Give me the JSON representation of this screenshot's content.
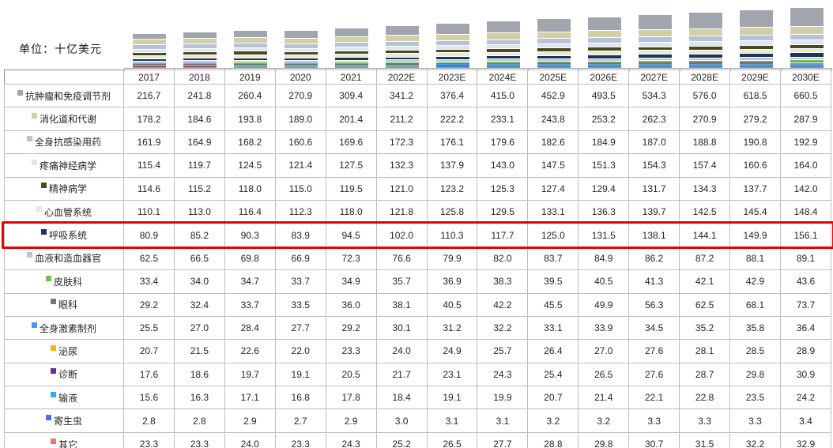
{
  "unit_label": "单位：十亿美元",
  "highlight": {
    "series": "呼吸系统",
    "series_index": 6,
    "color": "#e60000"
  },
  "chart_data": {
    "type": "bar",
    "stacked": true,
    "title": "",
    "unit": "十亿美元",
    "grid": false,
    "legend_position": "table-rows",
    "categories": [
      "2017",
      "2018",
      "2019",
      "2020",
      "2021",
      "2022E",
      "2023E",
      "2024E",
      "2025E",
      "2026E",
      "2027E",
      "2028E",
      "2029E",
      "2030E"
    ],
    "series": [
      {
        "name": "抗肿瘤和免疫调节剂",
        "color": "#a1a5ae",
        "values": [
          216.7,
          241.8,
          260.4,
          270.9,
          309.4,
          341.2,
          376.4,
          415.0,
          452.9,
          493.5,
          534.3,
          576.0,
          618.5,
          660.5
        ]
      },
      {
        "name": "消化道和代谢",
        "color": "#d2cea6",
        "values": [
          178.2,
          184.6,
          193.8,
          189.0,
          201.4,
          211.2,
          222.2,
          233.1,
          243.8,
          253.2,
          262.3,
          270.9,
          279.2,
          287.9
        ]
      },
      {
        "name": "全身抗感染用药",
        "color": "#b6c3d6",
        "values": [
          161.9,
          164.9,
          168.2,
          160.6,
          169.6,
          172.3,
          176.1,
          179.6,
          182.6,
          184.9,
          187.0,
          188.8,
          190.8,
          192.9
        ]
      },
      {
        "name": "疼痛神经病学",
        "color": "#dde6f0",
        "values": [
          115.4,
          119.7,
          124.5,
          121.4,
          127.5,
          132.3,
          137.9,
          143.0,
          147.5,
          151.3,
          154.3,
          157.4,
          160.6,
          164.0
        ]
      },
      {
        "name": "精神病学",
        "color": "#4a4a21",
        "values": [
          114.6,
          115.2,
          118.0,
          115.0,
          119.5,
          121.0,
          123.2,
          125.3,
          127.4,
          129.4,
          131.7,
          134.3,
          137.7,
          142.0
        ]
      },
      {
        "name": "心血管系统",
        "color": "#e9e9d8",
        "values": [
          110.1,
          113.0,
          116.4,
          112.3,
          118.0,
          121.8,
          125.8,
          129.5,
          133.1,
          136.3,
          139.7,
          142.5,
          145.4,
          148.4
        ]
      },
      {
        "name": "呼吸系统",
        "color": "#203452",
        "values": [
          80.9,
          85.2,
          90.3,
          83.9,
          94.5,
          102.0,
          110.3,
          117.7,
          125.0,
          131.5,
          138.1,
          144.1,
          149.9,
          156.1
        ]
      },
      {
        "name": "血液和造血器官",
        "color": "#afc9e1",
        "values": [
          62.5,
          66.5,
          69.8,
          66.9,
          72.3,
          76.6,
          79.9,
          82.0,
          83.7,
          84.9,
          86.2,
          87.2,
          88.1,
          89.1
        ]
      },
      {
        "name": "皮肤科",
        "color": "#74c04e",
        "values": [
          33.4,
          34.0,
          34.7,
          33.7,
          34.9,
          35.7,
          36.9,
          38.3,
          39.5,
          40.5,
          41.3,
          42.1,
          42.9,
          43.6
        ]
      },
      {
        "name": "眼科",
        "color": "#747474",
        "values": [
          29.2,
          32.4,
          33.7,
          33.5,
          36.0,
          38.1,
          40.5,
          42.2,
          45.5,
          49.9,
          56.3,
          62.5,
          68.1,
          73.7
        ]
      },
      {
        "name": "全身激素制剂",
        "color": "#4f96e8",
        "values": [
          25.5,
          27.0,
          28.4,
          27.7,
          29.2,
          30.1,
          31.2,
          32.2,
          33.1,
          33.9,
          34.5,
          35.2,
          35.8,
          36.4
        ]
      },
      {
        "name": "泌尿",
        "color": "#f2b705",
        "values": [
          20.7,
          21.5,
          22.6,
          22.0,
          23.3,
          24.0,
          24.9,
          25.7,
          26.4,
          27.0,
          27.6,
          28.1,
          28.5,
          28.9
        ]
      },
      {
        "name": "诊断",
        "color": "#6c2e91",
        "values": [
          17.6,
          18.6,
          19.7,
          19.1,
          20.5,
          21.7,
          23.1,
          24.3,
          25.4,
          26.5,
          27.6,
          28.7,
          29.8,
          30.9
        ]
      },
      {
        "name": "输液",
        "color": "#2bb4e8",
        "values": [
          15.6,
          16.3,
          17.1,
          16.8,
          17.8,
          18.4,
          19.1,
          19.9,
          20.7,
          21.4,
          22.1,
          22.8,
          23.5,
          24.2
        ]
      },
      {
        "name": "寄生虫",
        "color": "#4e6cea",
        "values": [
          2.8,
          2.8,
          2.9,
          2.7,
          2.9,
          3.0,
          3.1,
          3.1,
          3.2,
          3.2,
          3.3,
          3.3,
          3.3,
          3.4
        ]
      },
      {
        "name": "其它",
        "color": "#f87070",
        "values": [
          23.3,
          23.3,
          24.0,
          23.3,
          24.3,
          25.2,
          26.5,
          27.7,
          28.8,
          29.8,
          30.7,
          31.5,
          32.2,
          32.9
        ]
      }
    ]
  }
}
